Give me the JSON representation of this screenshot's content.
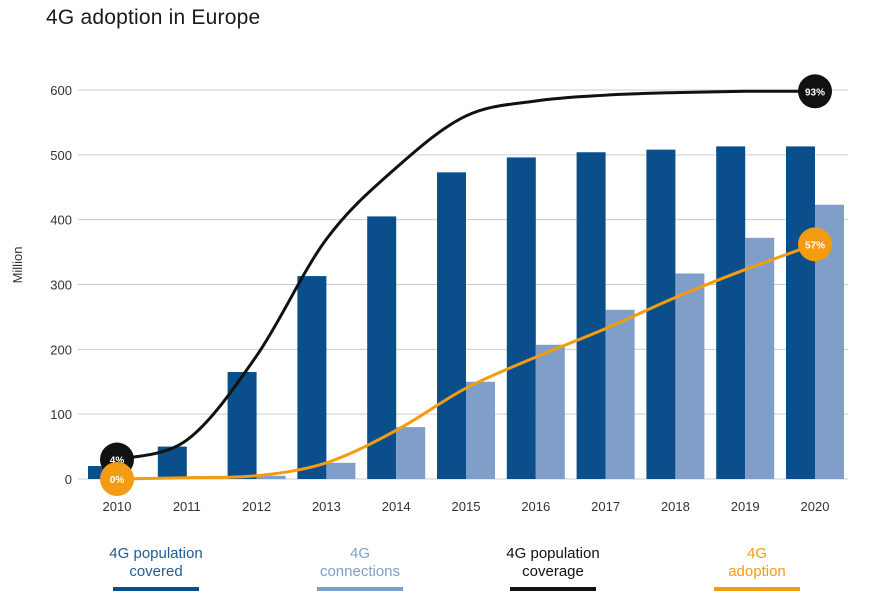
{
  "title": "4G adoption in Europe",
  "chart_data": {
    "type": "bar",
    "title": "4G adoption in Europe",
    "ylabel": "Million",
    "xlabel": "",
    "ylim": [
      0,
      600
    ],
    "yticks": [
      0,
      100,
      200,
      300,
      400,
      500,
      600
    ],
    "grid": true,
    "legend_position": "bottom",
    "categories": [
      "2010",
      "2011",
      "2012",
      "2013",
      "2014",
      "2015",
      "2016",
      "2017",
      "2018",
      "2019",
      "2020"
    ],
    "series": [
      {
        "name": "4G population covered",
        "kind": "bar",
        "color": "#0a4f8c",
        "values": [
          20,
          50,
          165,
          313,
          405,
          473,
          496,
          504,
          508,
          513,
          513
        ]
      },
      {
        "name": "4G connections",
        "kind": "bar",
        "color": "#7f9fc9",
        "values": [
          0,
          0,
          5,
          25,
          80,
          150,
          207,
          261,
          317,
          372,
          423
        ]
      },
      {
        "name": "4G population coverage",
        "kind": "line",
        "color": "#111111",
        "values": [
          30,
          60,
          190,
          370,
          480,
          560,
          583,
          592,
          596,
          598,
          598
        ]
      },
      {
        "name": "4G adoption",
        "kind": "line",
        "color": "#f39c12",
        "values": [
          0,
          2,
          5,
          25,
          75,
          140,
          188,
          232,
          280,
          323,
          362
        ]
      }
    ],
    "annotations": [
      {
        "series": "4G population coverage",
        "category": "2010",
        "label": "4%",
        "color": "#111111"
      },
      {
        "series": "4G population coverage",
        "category": "2020",
        "label": "93%",
        "color": "#111111"
      },
      {
        "series": "4G adoption",
        "category": "2010",
        "label": "0%",
        "color": "#f39c12"
      },
      {
        "series": "4G adoption",
        "category": "2020",
        "label": "57%",
        "color": "#f39c12"
      }
    ]
  },
  "legend": [
    {
      "line1": "4G population",
      "line2": "covered",
      "color": "#0a4f8c",
      "text_color": "#1f5c92"
    },
    {
      "line1": "4G",
      "line2": "connections",
      "color": "#7f9fc9",
      "text_color": "#7f9fc9"
    },
    {
      "line1": "4G population",
      "line2": "coverage",
      "color": "#111111",
      "text_color": "#111111"
    },
    {
      "line1": "4G",
      "line2": "adoption",
      "color": "#f39c12",
      "text_color": "#f39c12"
    }
  ]
}
